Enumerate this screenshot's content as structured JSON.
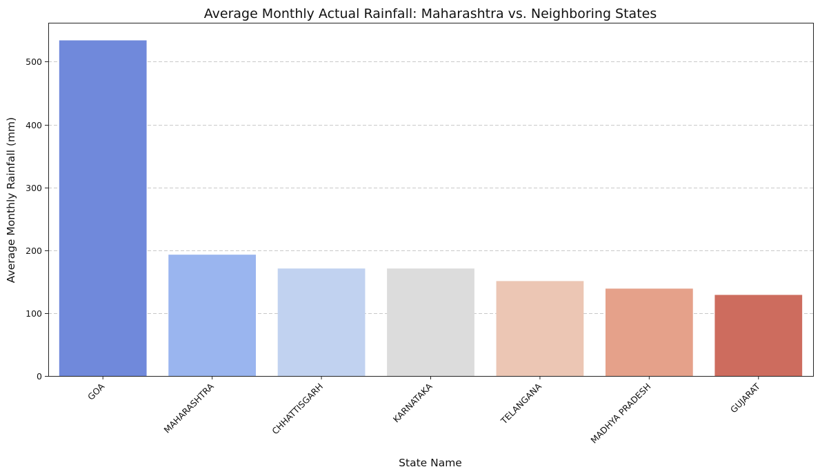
{
  "chart_data": {
    "type": "bar",
    "title": "Average Monthly Actual Rainfall: Maharashtra vs. Neighboring States",
    "xlabel": "State Name",
    "ylabel": "Average Monthly Rainfall (mm)",
    "ylim": [
      0,
      562
    ],
    "yticks": [
      0,
      100,
      200,
      300,
      400,
      500
    ],
    "grid": "horizontal dashed",
    "categories": [
      "GOA",
      "MAHARASHTRA",
      "CHHATTISGARH",
      "KARNATAKA",
      "TELANGANA",
      "MADHYA PRADESH",
      "GUJARAT"
    ],
    "values": [
      534,
      193,
      171,
      171,
      151,
      139,
      129
    ],
    "colors": [
      "#7089db",
      "#9ab5ef",
      "#c1d2f0",
      "#dcdcdc",
      "#ecc6b4",
      "#e5a18a",
      "#cd6c5e"
    ]
  }
}
